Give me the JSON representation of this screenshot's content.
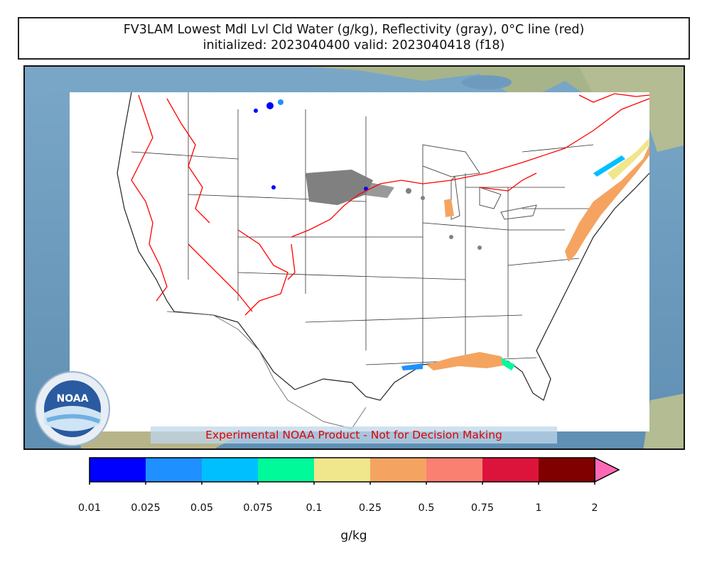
{
  "title": {
    "line1": "FV3LAM Lowest Mdl Lvl Cld Water (g/kg), Reflectivity (gray), 0°C line (red)",
    "line2": "initialized: 2023040400 valid: 2023040418 (f18)"
  },
  "disclaimer": "Experimental NOAA Product - Not for Decision Making",
  "logo": {
    "text": "NOAA"
  },
  "colorbar": {
    "units": "g/kg",
    "ticks": [
      "0.01",
      "0.025",
      "0.05",
      "0.075",
      "0.1",
      "0.25",
      "0.5",
      "0.75",
      "1",
      "2"
    ],
    "colors": [
      "#0000ff",
      "#1e90ff",
      "#00bfff",
      "#00fa9a",
      "#f0e68c",
      "#f4a460",
      "#fa8072",
      "#dc143c",
      "#800000"
    ],
    "extend_color": "#ff69b4"
  },
  "colors": {
    "freezing_line": "#ff0000",
    "reflectivity": "#808080",
    "ocean": "#6e9bbd",
    "land": "#a9b98e"
  }
}
